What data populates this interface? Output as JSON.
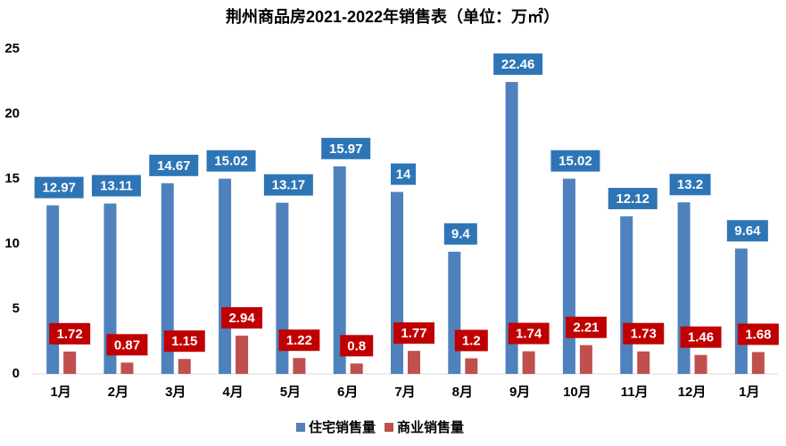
{
  "chart_data": {
    "type": "bar",
    "title": "荆州商品房2021-2022年销售表（单位：万㎡）",
    "categories": [
      "1月",
      "2月",
      "3月",
      "4月",
      "5月",
      "6月",
      "7月",
      "8月",
      "9月",
      "10月",
      "11月",
      "12月",
      "1月"
    ],
    "series": [
      {
        "name": "住宅销售量",
        "color": "#4f81bd",
        "label_color": "#2e75b6",
        "values": [
          12.97,
          13.11,
          14.67,
          15.02,
          13.17,
          15.97,
          14,
          9.4,
          22.46,
          15.02,
          12.12,
          13.2,
          9.64
        ]
      },
      {
        "name": "商业销售量",
        "color": "#c0504d",
        "label_color": "#c00000",
        "values": [
          1.72,
          0.87,
          1.15,
          2.94,
          1.22,
          0.8,
          1.77,
          1.2,
          1.74,
          2.21,
          1.73,
          1.46,
          1.68
        ]
      }
    ],
    "ylim": [
      0,
      25
    ],
    "yticks": [
      0,
      5,
      10,
      15,
      20,
      25
    ],
    "grid": false,
    "legend": "bottom"
  }
}
